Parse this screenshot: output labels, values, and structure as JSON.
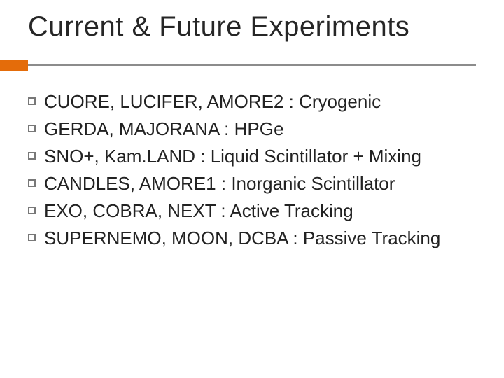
{
  "title": "Current & Future Experiments",
  "accent_color": "#e46c0a",
  "rule_color": "#8c8c8c",
  "bullet_box_border": "#787878",
  "text_color": "#222222",
  "title_color": "#262626",
  "title_fontsize": 40,
  "body_fontsize": 26,
  "bullets": [
    {
      "experiments": "CUORE, LUCIFER, AMORE2",
      "sep": " : ",
      "category": "Cryogenic",
      "category_color": "#222222"
    },
    {
      "experiments": "GERDA, MAJORANA",
      "sep": " : ",
      "category": "HPGe",
      "category_color": "#222222"
    },
    {
      "experiments": "SNO+, Kam.LAND",
      "sep": " : ",
      "category": "Liquid Scintillator + Mixing",
      "category_color": "#222222"
    },
    {
      "experiments": "CANDLES, AMORE1",
      "sep": " : ",
      "category": "Inorganic Scintillator",
      "category_color": "#222222"
    },
    {
      "experiments": "EXO, COBRA, NEXT",
      "sep": " : ",
      "category": "Active Tracking",
      "category_color": "#222222"
    },
    {
      "experiments": "SUPERNEMO, MOON, DCBA",
      "sep": " : ",
      "category": "Passive Tracking",
      "category_color": "#222222"
    }
  ]
}
